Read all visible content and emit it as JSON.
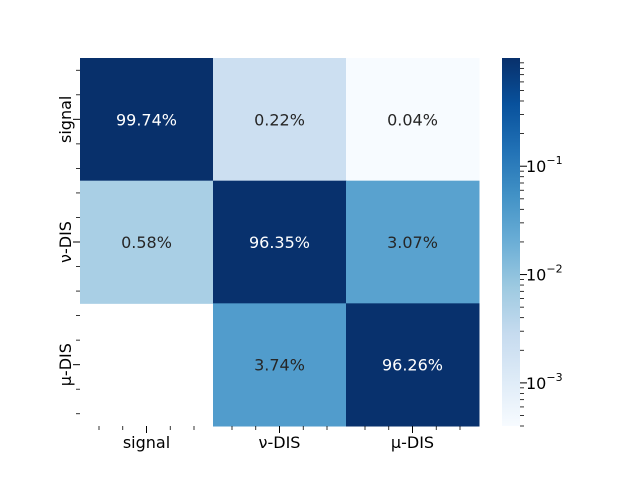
{
  "chart_data": {
    "type": "heatmap",
    "title": "",
    "rows": [
      "signal",
      "ν-DIS",
      "μ-DIS"
    ],
    "columns": [
      "signal",
      "ν-DIS",
      "μ-DIS"
    ],
    "values": [
      [
        0.9974,
        0.0022,
        0.0004
      ],
      [
        0.0058,
        0.9635,
        0.0307
      ],
      [
        null,
        0.0374,
        0.9626
      ]
    ],
    "cell_labels": [
      [
        "99.74%",
        "0.22%",
        "0.04%"
      ],
      [
        "0.58%",
        "96.35%",
        "3.07%"
      ],
      [
        "",
        "3.74%",
        "96.26%"
      ]
    ],
    "colorscale": "Blues",
    "color_scale_type": "log",
    "colorbar": {
      "range": [
        0.0004,
        0.9974
      ],
      "ticks": [
        {
          "value": 0.001,
          "base": "10",
          "exp": "−3"
        },
        {
          "value": 0.01,
          "base": "10",
          "exp": "−2"
        },
        {
          "value": 0.1,
          "base": "10",
          "exp": "−1"
        }
      ]
    }
  }
}
